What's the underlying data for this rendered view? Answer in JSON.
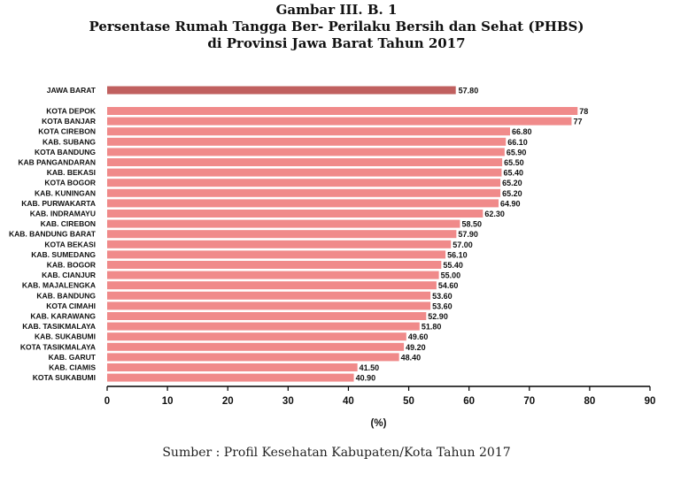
{
  "chart_data": {
    "type": "bar",
    "orientation": "horizontal",
    "title": [
      "Gambar III. B. 1",
      "Persentase Rumah Tangga Ber- Perilaku Bersih dan Sehat (PHBS)",
      "di Provinsi Jawa Barat Tahun 2017"
    ],
    "xlabel": "(%)",
    "ylabel": "",
    "xlim": [
      0,
      90
    ],
    "xticks": [
      0,
      10,
      20,
      30,
      40,
      50,
      60,
      70,
      80,
      90
    ],
    "grid": false,
    "highlight": {
      "category": "JAWA BARAT",
      "value": 57.8,
      "label": "57.80"
    },
    "categories": [
      "KOTA DEPOK",
      "KOTA BANJAR",
      "KOTA CIREBON",
      "KAB. SUBANG",
      "KOTA BANDUNG",
      "KAB PANGANDARAN",
      "KAB. BEKASI",
      "KOTA BOGOR",
      "KAB. KUNINGAN",
      "KAB. PURWAKARTA",
      "KAB. INDRAMAYU",
      "KAB. CIREBON",
      "KAB. BANDUNG BARAT",
      "KOTA BEKASI",
      "KAB. SUMEDANG",
      "KAB. BOGOR",
      "KAB. CIANJUR",
      "KAB. MAJALENGKA",
      "KAB. BANDUNG",
      "KOTA CIMAHI",
      "KAB. KARAWANG",
      "KAB. TASIKMALAYA",
      "KAB. SUKABUMI",
      "KOTA TASIKMALAYA",
      "KAB. GARUT",
      "KAB. CIAMIS",
      "KOTA SUKABUMI"
    ],
    "values": [
      78,
      77,
      66.8,
      66.1,
      65.9,
      65.5,
      65.4,
      65.2,
      65.2,
      64.9,
      62.3,
      58.5,
      57.9,
      57.0,
      56.1,
      55.4,
      55.0,
      54.6,
      53.6,
      53.6,
      52.9,
      51.8,
      49.6,
      49.2,
      48.4,
      41.5,
      40.9
    ],
    "value_labels": [
      "78",
      "77",
      "66.80",
      "66.10",
      "65.90",
      "65.50",
      "65.40",
      "65.20",
      "65.20",
      "64.90",
      "62.30",
      "58.50",
      "57.90",
      "57.00",
      "56.10",
      "55.40",
      "55.00",
      "54.60",
      "53.60",
      "53.60",
      "52.90",
      "51.80",
      "49.60",
      "49.20",
      "48.40",
      "41.50",
      "40.90"
    ],
    "colors": {
      "highlight_bar": "#c0605f",
      "bar": "#f08a8a",
      "axis": "#000000"
    }
  },
  "source": "Sumber : Profil Kesehatan Kabupaten/Kota Tahun 2017"
}
